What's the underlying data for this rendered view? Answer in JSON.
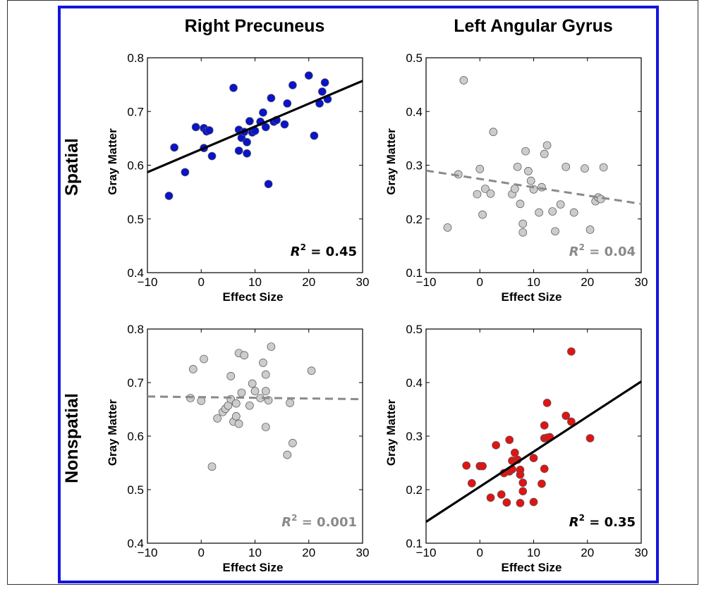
{
  "colors": {
    "frame": "#1414e0",
    "blue_point": "#0a14c8",
    "red_point": "#e01414",
    "gray_point": "#cccccc",
    "fit_solid": "#000000",
    "fit_dashed": "#8a8a8a"
  },
  "column_titles": [
    "Right Precuneus",
    "Left Angular Gyrus"
  ],
  "row_titles": [
    "Spatial",
    "Nonspatial"
  ],
  "chart_data": [
    {
      "type": "scatter",
      "row": "Spatial",
      "column": "Right Precuneus",
      "xlabel": "Effect Size",
      "ylabel": "Gray Matter",
      "xlim": [
        -10,
        30
      ],
      "ylim": [
        0.4,
        0.8
      ],
      "xticks": [
        "−10",
        "0",
        "10",
        "20",
        "30"
      ],
      "yticks": [
        "0.4",
        "0.5",
        "0.6",
        "0.7",
        "0.8"
      ],
      "point_color": "blue_point",
      "points": [
        [
          -6,
          0.543
        ],
        [
          -5,
          0.633
        ],
        [
          -3,
          0.587
        ],
        [
          -1,
          0.671
        ],
        [
          0.5,
          0.632
        ],
        [
          0.5,
          0.669
        ],
        [
          1,
          0.663
        ],
        [
          1.5,
          0.665
        ],
        [
          2,
          0.617
        ],
        [
          6,
          0.744
        ],
        [
          7,
          0.627
        ],
        [
          7,
          0.666
        ],
        [
          7.5,
          0.651
        ],
        [
          8,
          0.662
        ],
        [
          8.5,
          0.622
        ],
        [
          8.5,
          0.643
        ],
        [
          9,
          0.682
        ],
        [
          9.5,
          0.661
        ],
        [
          10,
          0.664
        ],
        [
          11,
          0.681
        ],
        [
          11.5,
          0.698
        ],
        [
          12,
          0.671
        ],
        [
          12.5,
          0.565
        ],
        [
          13,
          0.725
        ],
        [
          13.5,
          0.681
        ],
        [
          14,
          0.684
        ],
        [
          15.5,
          0.676
        ],
        [
          16,
          0.715
        ],
        [
          17,
          0.749
        ],
        [
          20,
          0.767
        ],
        [
          21,
          0.655
        ],
        [
          22,
          0.715
        ],
        [
          22.5,
          0.737
        ],
        [
          23,
          0.754
        ],
        [
          23.5,
          0.723
        ]
      ],
      "fit": {
        "x": [
          -10,
          30
        ],
        "y": [
          0.587,
          0.757
        ],
        "style": "solid"
      },
      "annotation": {
        "label": "R",
        "sup": "2",
        "value": " = 0.45",
        "color": "fit_solid"
      }
    },
    {
      "type": "scatter",
      "row": "Spatial",
      "column": "Left Angular Gyrus",
      "xlabel": "Effect Size",
      "ylabel": "Gray Matter",
      "xlim": [
        -10,
        30
      ],
      "ylim": [
        0.1,
        0.5
      ],
      "xticks": [
        "−10",
        "0",
        "10",
        "20",
        "30"
      ],
      "yticks": [
        "0.1",
        "0.2",
        "0.3",
        "0.4",
        "0.5"
      ],
      "point_color": "gray_point",
      "points": [
        [
          -6,
          0.184
        ],
        [
          -4,
          0.283
        ],
        [
          -3,
          0.458
        ],
        [
          -0.5,
          0.246
        ],
        [
          0,
          0.293
        ],
        [
          0.5,
          0.208
        ],
        [
          1,
          0.256
        ],
        [
          2,
          0.247
        ],
        [
          2.5,
          0.362
        ],
        [
          6,
          0.246
        ],
        [
          6.5,
          0.256
        ],
        [
          7,
          0.297
        ],
        [
          7.5,
          0.228
        ],
        [
          8,
          0.191
        ],
        [
          8,
          0.175
        ],
        [
          8.5,
          0.326
        ],
        [
          9,
          0.289
        ],
        [
          9.5,
          0.271
        ],
        [
          10,
          0.255
        ],
        [
          11,
          0.212
        ],
        [
          11.5,
          0.259
        ],
        [
          12,
          0.321
        ],
        [
          12.5,
          0.337
        ],
        [
          13.5,
          0.214
        ],
        [
          14,
          0.177
        ],
        [
          15,
          0.227
        ],
        [
          16,
          0.297
        ],
        [
          17.5,
          0.212
        ],
        [
          19.5,
          0.294
        ],
        [
          20.5,
          0.18
        ],
        [
          21.5,
          0.233
        ],
        [
          22,
          0.24
        ],
        [
          22.5,
          0.237
        ],
        [
          23,
          0.296
        ]
      ],
      "fit": {
        "x": [
          -10,
          30
        ],
        "y": [
          0.29,
          0.228
        ],
        "style": "dashed"
      },
      "annotation": {
        "label": "R",
        "sup": "2",
        "value": " = 0.04",
        "color": "fit_dashed"
      }
    },
    {
      "type": "scatter",
      "row": "Nonspatial",
      "column": "Right Precuneus",
      "xlabel": "Effect Size",
      "ylabel": "Gray Matter",
      "xlim": [
        -10,
        30
      ],
      "ylim": [
        0.4,
        0.8
      ],
      "xticks": [
        "−10",
        "0",
        "10",
        "20",
        "30"
      ],
      "yticks": [
        "0.4",
        "0.5",
        "0.6",
        "0.7",
        "0.8"
      ],
      "point_color": "gray_point",
      "points": [
        [
          -2,
          0.671
        ],
        [
          -1.5,
          0.725
        ],
        [
          0,
          0.666
        ],
        [
          0.5,
          0.744
        ],
        [
          2,
          0.543
        ],
        [
          3,
          0.633
        ],
        [
          4,
          0.645
        ],
        [
          4.5,
          0.651
        ],
        [
          5,
          0.657
        ],
        [
          5.5,
          0.669
        ],
        [
          5.5,
          0.712
        ],
        [
          6,
          0.627
        ],
        [
          6.5,
          0.661
        ],
        [
          6.5,
          0.637
        ],
        [
          7,
          0.755
        ],
        [
          7,
          0.623
        ],
        [
          7.5,
          0.681
        ],
        [
          8,
          0.751
        ],
        [
          9,
          0.657
        ],
        [
          9.5,
          0.698
        ],
        [
          10,
          0.684
        ],
        [
          11,
          0.671
        ],
        [
          11.5,
          0.737
        ],
        [
          12,
          0.715
        ],
        [
          12,
          0.684
        ],
        [
          12,
          0.617
        ],
        [
          12.5,
          0.667
        ],
        [
          13,
          0.767
        ],
        [
          16,
          0.565
        ],
        [
          16.5,
          0.662
        ],
        [
          17,
          0.587
        ],
        [
          20.5,
          0.722
        ]
      ],
      "fit": {
        "x": [
          -10,
          30
        ],
        "y": [
          0.674,
          0.669
        ],
        "style": "dashed"
      },
      "annotation": {
        "label": "R",
        "sup": "2",
        "value": " = 0.001",
        "color": "fit_dashed"
      }
    },
    {
      "type": "scatter",
      "row": "Nonspatial",
      "column": "Left Angular Gyrus",
      "xlabel": "Effect Size",
      "ylabel": "Gray Matter",
      "xlim": [
        -10,
        30
      ],
      "ylim": [
        0.1,
        0.5
      ],
      "xticks": [
        "−10",
        "0",
        "10",
        "20",
        "30"
      ],
      "yticks": [
        "0.1",
        "0.2",
        "0.3",
        "0.4",
        "0.5"
      ],
      "point_color": "red_point",
      "points": [
        [
          -2.5,
          0.245
        ],
        [
          -1.5,
          0.212
        ],
        [
          0,
          0.244
        ],
        [
          0.5,
          0.244
        ],
        [
          2,
          0.185
        ],
        [
          3,
          0.283
        ],
        [
          4,
          0.191
        ],
        [
          4.5,
          0.231
        ],
        [
          5,
          0.176
        ],
        [
          5.5,
          0.293
        ],
        [
          5.5,
          0.234
        ],
        [
          6,
          0.254
        ],
        [
          6,
          0.238
        ],
        [
          6.5,
          0.269
        ],
        [
          7,
          0.256
        ],
        [
          7.5,
          0.228
        ],
        [
          7.5,
          0.175
        ],
        [
          7.5,
          0.237
        ],
        [
          8,
          0.213
        ],
        [
          8,
          0.197
        ],
        [
          10,
          0.259
        ],
        [
          10,
          0.177
        ],
        [
          11.5,
          0.211
        ],
        [
          12,
          0.239
        ],
        [
          12,
          0.32
        ],
        [
          12,
          0.296
        ],
        [
          12.5,
          0.362
        ],
        [
          12.5,
          0.297
        ],
        [
          13,
          0.298
        ],
        [
          16,
          0.338
        ],
        [
          17,
          0.327
        ],
        [
          17,
          0.458
        ],
        [
          20.5,
          0.296
        ]
      ],
      "fit": {
        "x": [
          -10,
          30
        ],
        "y": [
          0.14,
          0.402
        ],
        "style": "solid"
      },
      "annotation": {
        "label": "R",
        "sup": "2",
        "value": " = 0.35",
        "color": "fit_solid"
      }
    }
  ]
}
